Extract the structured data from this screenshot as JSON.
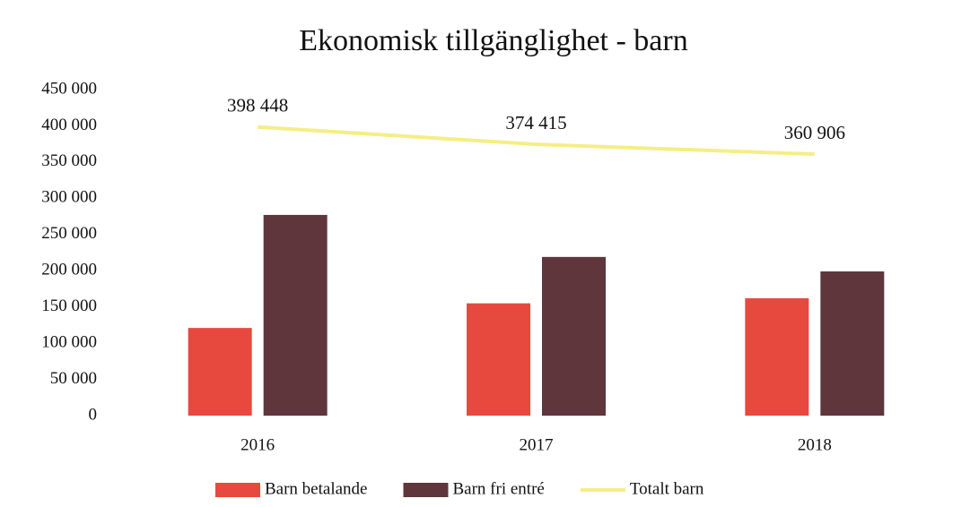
{
  "chart_data": {
    "type": "bar",
    "title": "Ekonomisk tillgänglighet - barn",
    "categories": [
      "2016",
      "2017",
      "2018"
    ],
    "series": [
      {
        "name": "Barn betalande",
        "color": "#e8493f",
        "values": [
          121000,
          155000,
          162000
        ]
      },
      {
        "name": "Barn fri entré",
        "color": "#5e363c",
        "values": [
          277000,
          219000,
          199000
        ]
      },
      {
        "name": "Totalt barn",
        "color": "#f5ee84",
        "type": "line",
        "values": [
          398448,
          374415,
          360906
        ],
        "value_labels": [
          "398 448",
          "374 415",
          "360 906"
        ]
      }
    ],
    "ylim": [
      0,
      450000
    ],
    "yticks": [
      0,
      {
        "value": 50000,
        "label": "50 000"
      },
      {
        "value": 100000,
        "label": "100 000"
      },
      {
        "value": 150000,
        "label": "150 000"
      },
      {
        "value": 200000,
        "label": "200 000"
      },
      {
        "value": 250000,
        "label": "250 000"
      },
      {
        "value": 300000,
        "label": "300 000"
      },
      {
        "value": 350000,
        "label": "350 000"
      },
      {
        "value": 400000,
        "label": "400 000"
      },
      {
        "value": 450000,
        "label": "450 000"
      }
    ],
    "grid": false,
    "legend": "bottom"
  }
}
